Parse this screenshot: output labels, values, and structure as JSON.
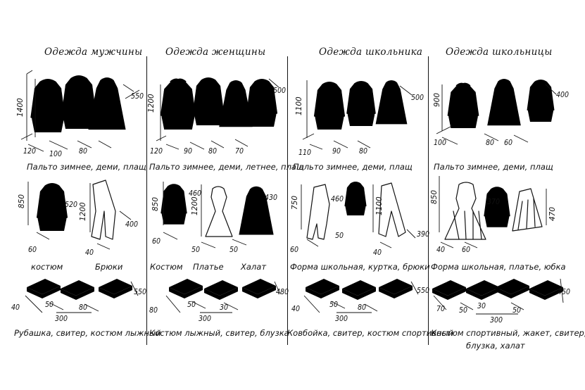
{
  "sections": [
    {
      "title": "Одежда мужчины",
      "row1": {
        "caption": "Пальто зимнее, деми, плащ",
        "height": "1400",
        "depth": "550",
        "widths": [
          "120",
          "100",
          "80"
        ]
      },
      "row2": {
        "caption_left": "костюм",
        "caption_right": "Брюки",
        "dims_left": [
          "850",
          "520",
          "60"
        ],
        "dims_right": [
          "1200",
          "400",
          "40"
        ]
      },
      "row3": {
        "caption": "Рубашка, свитер, костюм лыжный",
        "dims": [
          "40",
          "50",
          "300",
          "80",
          "550"
        ]
      }
    },
    {
      "title": "Одежда женщины",
      "row1": {
        "caption": "Пальто зимнее, деми, летнее, плащ",
        "height": "1200",
        "depth": "500",
        "widths": [
          "120",
          "90",
          "80",
          "70"
        ]
      },
      "row2": {
        "captions": [
          "Костюм",
          "Платье",
          "Халат"
        ],
        "dims": [
          "850",
          "460",
          "1200",
          "430",
          "60",
          "50",
          "50"
        ]
      },
      "row3": {
        "caption": "Костюм лыжный, свитер, блузка",
        "dims": [
          "80",
          "50",
          "300",
          "30",
          "480"
        ]
      }
    },
    {
      "title": "Одежда школьника",
      "row1": {
        "caption": "Пальто зимнее, деми, плащ",
        "height": "1100",
        "depth": "500",
        "widths": [
          "110",
          "90",
          "80"
        ]
      },
      "row2": {
        "caption": "Форма школьная, куртка, брюки",
        "dims": [
          "750",
          "460",
          "1100",
          "390",
          "60",
          "50",
          "40"
        ]
      },
      "row3": {
        "caption": "Ковбойка, свитер, костюм спортивный",
        "dims": [
          "40",
          "50",
          "300",
          "80",
          "550"
        ]
      }
    },
    {
      "title": "Одежда школьницы",
      "row1": {
        "caption": "Пальто зимнее, деми, плащ",
        "height": "900",
        "depth": "400",
        "widths": [
          "100",
          "80",
          "60"
        ]
      },
      "row2": {
        "caption": "Форма школьная, платье, юбка",
        "dims": [
          "850",
          "370",
          "470",
          "40",
          "60"
        ]
      },
      "row3": {
        "caption_line1": "Костюм спортивный, жакет, свитер,",
        "caption_line2": "блузка, халат",
        "dims": [
          "70",
          "50",
          "30",
          "300",
          "50",
          "450"
        ]
      }
    }
  ]
}
